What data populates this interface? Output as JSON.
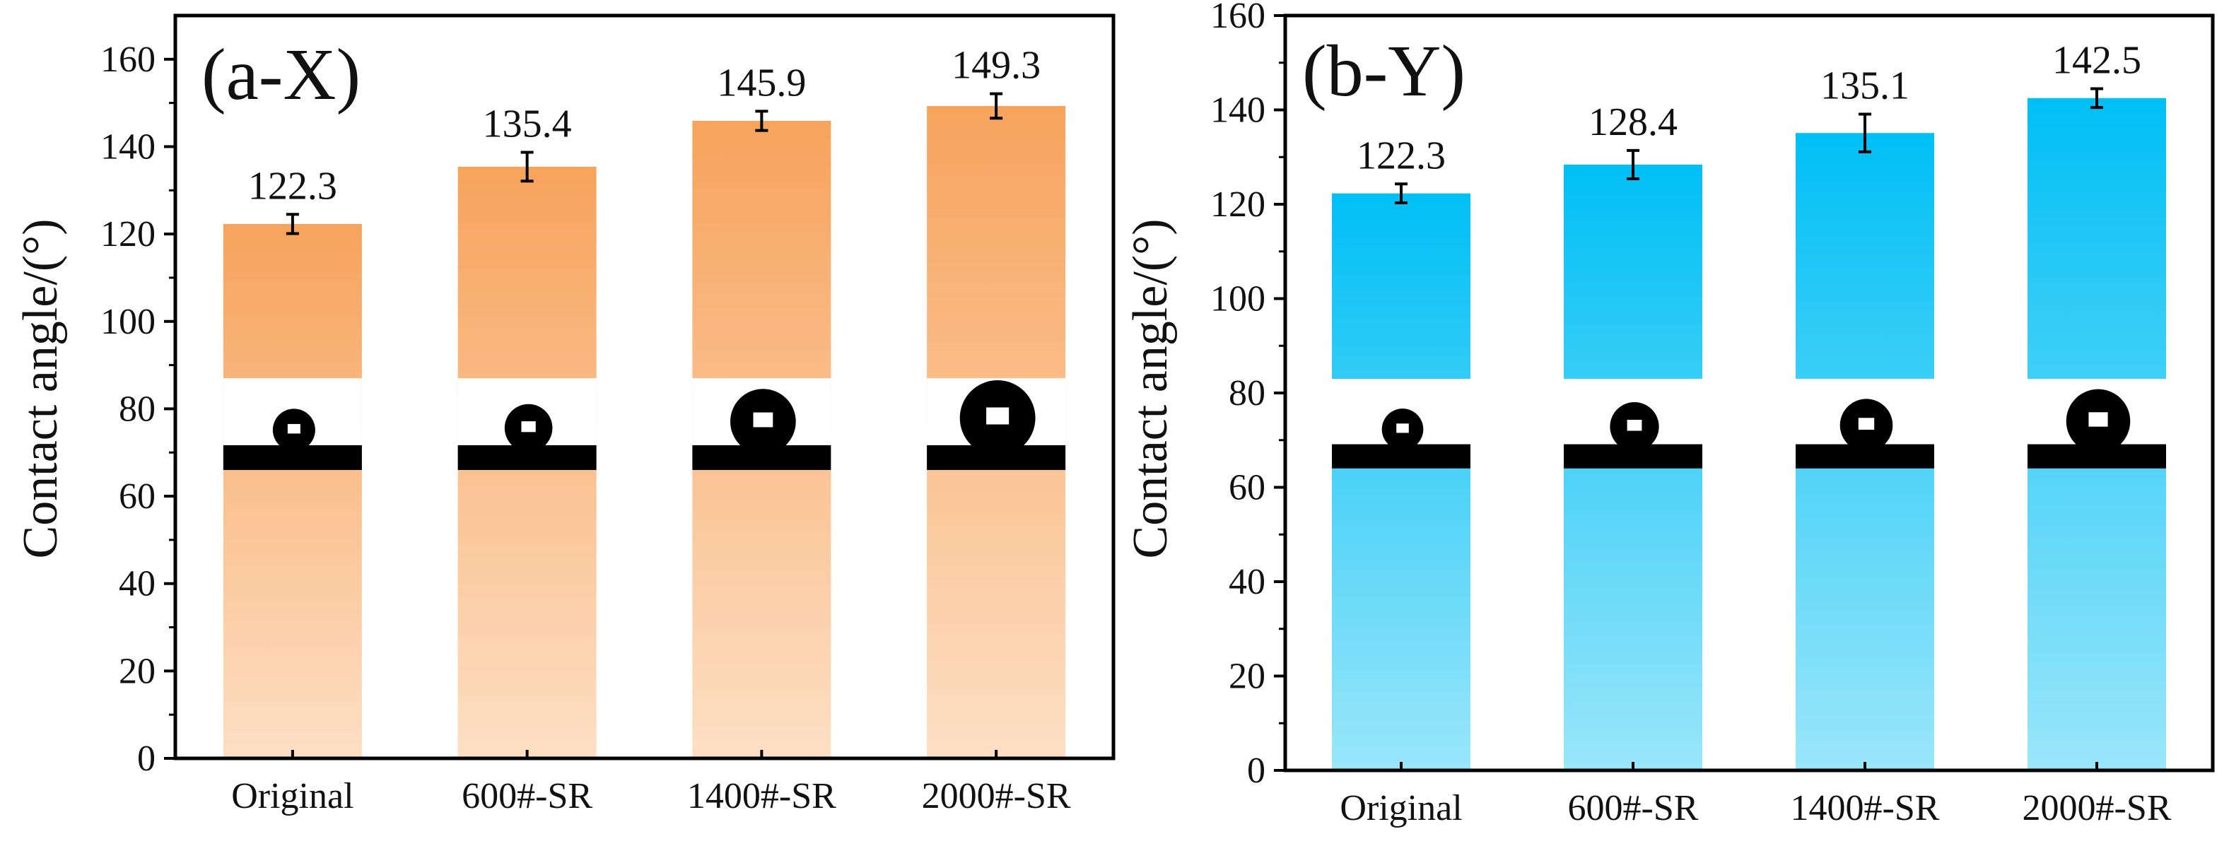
{
  "chart_data": [
    {
      "type": "bar",
      "panel_label": "(a-X)",
      "ylabel": "Contact angle/(°)",
      "xlabel": "",
      "categories": [
        "Original",
        "600#-SR",
        "1400#-SR",
        "2000#-SR"
      ],
      "values": [
        122.3,
        135.4,
        145.9,
        149.3
      ],
      "value_labels": [
        "122.3",
        "135.4",
        "145.9",
        "149.3"
      ],
      "errors": [
        2.2,
        3.3,
        2.2,
        2.8
      ],
      "ylim": [
        0,
        170
      ],
      "yticks": [
        0,
        20,
        40,
        60,
        80,
        100,
        120,
        140,
        160
      ],
      "bar_color_top": "#F7A35C",
      "bar_color_bottom": "#FDDFC4",
      "droplet_inset": true,
      "droplet_band": [
        66,
        87
      ],
      "droplet_sizes": [
        0.55,
        0.62,
        0.85,
        0.98
      ]
    },
    {
      "type": "bar",
      "panel_label": "(b-Y)",
      "ylabel": "Contact angle/(°)",
      "xlabel": "",
      "categories": [
        "Original",
        "600#-SR",
        "1400#-SR",
        "2000#-SR"
      ],
      "values": [
        122.3,
        128.4,
        135.1,
        142.5
      ],
      "value_labels": [
        "122.3",
        "128.4",
        "135.1",
        "142.5"
      ],
      "errors": [
        2.0,
        3.0,
        4.0,
        2.0
      ],
      "ylim": [
        0,
        160
      ],
      "yticks": [
        0,
        20,
        40,
        60,
        80,
        100,
        120,
        140,
        160
      ],
      "bar_color_top": "#00BFF5",
      "bar_color_bottom": "#9AE6FA",
      "droplet_inset": true,
      "droplet_band": [
        64,
        83
      ],
      "droplet_sizes": [
        0.55,
        0.65,
        0.7,
        0.85
      ]
    }
  ]
}
